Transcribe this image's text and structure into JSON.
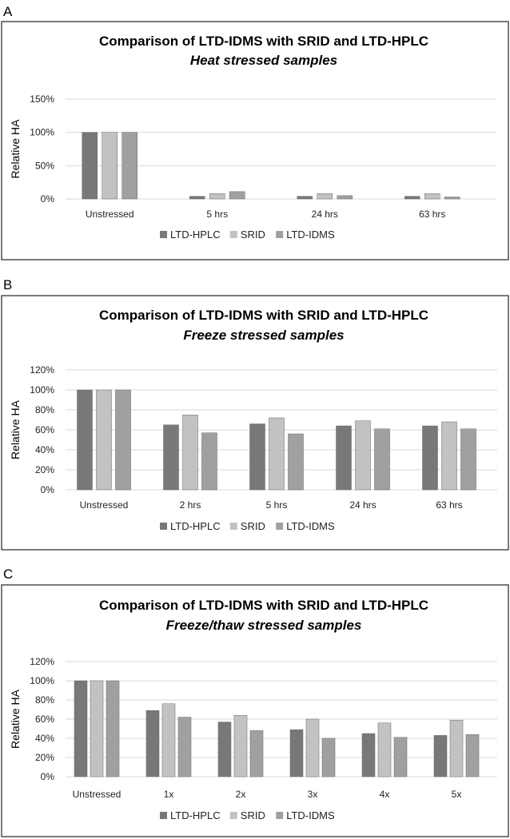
{
  "colors": {
    "LTD-HPLC": "#787878",
    "SRID": "#c2c2c2",
    "LTD-IDMS": "#a0a0a0"
  },
  "chart_data": [
    {
      "panel_label": "A",
      "type": "bar",
      "title": "Comparison of LTD-IDMS with SRID and LTD-HPLC",
      "subtitle": "Heat stressed samples",
      "ylabel": "Relative HA",
      "xlabel": "",
      "ylim": [
        0,
        150
      ],
      "yticks": [
        "0%",
        "50%",
        "100%",
        "150%"
      ],
      "ytick_values": [
        0,
        50,
        100,
        150
      ],
      "categories": [
        "Unstressed",
        "5 hrs",
        "24 hrs",
        "63 hrs"
      ],
      "series": [
        {
          "name": "LTD-HPLC",
          "values": [
            100,
            4,
            4,
            4
          ]
        },
        {
          "name": "SRID",
          "values": [
            100,
            8,
            8,
            8
          ]
        },
        {
          "name": "LTD-IDMS",
          "values": [
            100,
            11,
            5,
            3
          ]
        }
      ],
      "grid": true,
      "legend": "bottom"
    },
    {
      "panel_label": "B",
      "type": "bar",
      "title": "Comparison of LTD-IDMS with SRID and LTD-HPLC",
      "subtitle": "Freeze stressed samples",
      "ylabel": "Relative HA",
      "xlabel": "",
      "ylim": [
        0,
        120
      ],
      "yticks": [
        "0%",
        "20%",
        "40%",
        "60%",
        "80%",
        "100%",
        "120%"
      ],
      "ytick_values": [
        0,
        20,
        40,
        60,
        80,
        100,
        120
      ],
      "categories": [
        "Unstressed",
        "2 hrs",
        "5 hrs",
        "24 hrs",
        "63 hrs"
      ],
      "series": [
        {
          "name": "LTD-HPLC",
          "values": [
            100,
            65,
            66,
            64,
            64
          ]
        },
        {
          "name": "SRID",
          "values": [
            100,
            75,
            72,
            69,
            68
          ]
        },
        {
          "name": "LTD-IDMS",
          "values": [
            100,
            57,
            56,
            61,
            61
          ]
        }
      ],
      "grid": true,
      "legend": "bottom"
    },
    {
      "panel_label": "C",
      "type": "bar",
      "title": "Comparison of LTD-IDMS with SRID and LTD-HPLC",
      "subtitle": "Freeze/thaw stressed samples",
      "ylabel": "Relative HA",
      "xlabel": "",
      "ylim": [
        0,
        120
      ],
      "yticks": [
        "0%",
        "20%",
        "40%",
        "60%",
        "80%",
        "100%",
        "120%"
      ],
      "ytick_values": [
        0,
        20,
        40,
        60,
        80,
        100,
        120
      ],
      "categories": [
        "Unstressed",
        "1x",
        "2x",
        "3x",
        "4x",
        "5x"
      ],
      "series": [
        {
          "name": "LTD-HPLC",
          "values": [
            100,
            69,
            57,
            49,
            45,
            43
          ]
        },
        {
          "name": "SRID",
          "values": [
            100,
            76,
            64,
            60,
            56,
            59
          ]
        },
        {
          "name": "LTD-IDMS",
          "values": [
            100,
            62,
            48,
            40,
            41,
            44
          ]
        }
      ],
      "grid": true,
      "legend": "bottom"
    }
  ]
}
